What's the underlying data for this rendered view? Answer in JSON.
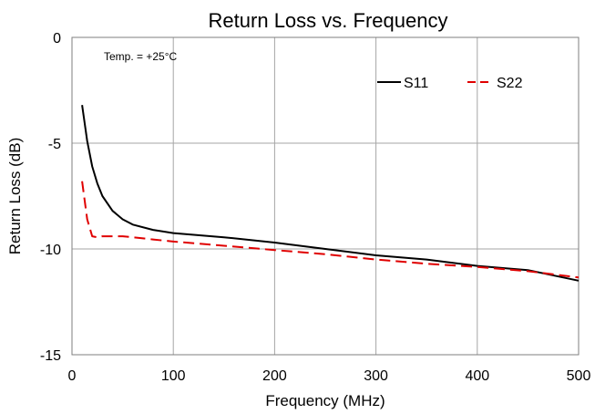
{
  "chart_data": {
    "type": "line",
    "title": "Return Loss vs. Frequency",
    "xlabel": "Frequency (MHz)",
    "ylabel": "Return Loss (dB)",
    "xlim": [
      0,
      500
    ],
    "ylim": [
      -15,
      0
    ],
    "xticks": [
      0,
      100,
      200,
      300,
      400,
      500
    ],
    "yticks": [
      0,
      -5,
      -10,
      -15
    ],
    "grid": true,
    "legend_position": "top-right",
    "annotation": "Temp. = +25°C",
    "series": [
      {
        "name": "S11",
        "color": "#000000",
        "style": "solid",
        "x": [
          10,
          15,
          20,
          25,
          30,
          40,
          50,
          60,
          80,
          100,
          150,
          200,
          250,
          300,
          350,
          400,
          450,
          500
        ],
        "y": [
          -3.2,
          -4.9,
          -6.1,
          -6.9,
          -7.5,
          -8.2,
          -8.6,
          -8.85,
          -9.1,
          -9.25,
          -9.45,
          -9.7,
          -10.0,
          -10.3,
          -10.5,
          -10.8,
          -11.0,
          -11.5
        ]
      },
      {
        "name": "S22",
        "color": "#e00000",
        "style": "dashed",
        "x": [
          10,
          15,
          20,
          25,
          30,
          40,
          50,
          60,
          80,
          100,
          150,
          200,
          250,
          300,
          350,
          400,
          450,
          500
        ],
        "y": [
          -6.8,
          -8.6,
          -9.4,
          -9.45,
          -9.4,
          -9.4,
          -9.4,
          -9.45,
          -9.55,
          -9.65,
          -9.85,
          -10.05,
          -10.25,
          -10.5,
          -10.7,
          -10.85,
          -11.05,
          -11.35
        ]
      }
    ]
  }
}
